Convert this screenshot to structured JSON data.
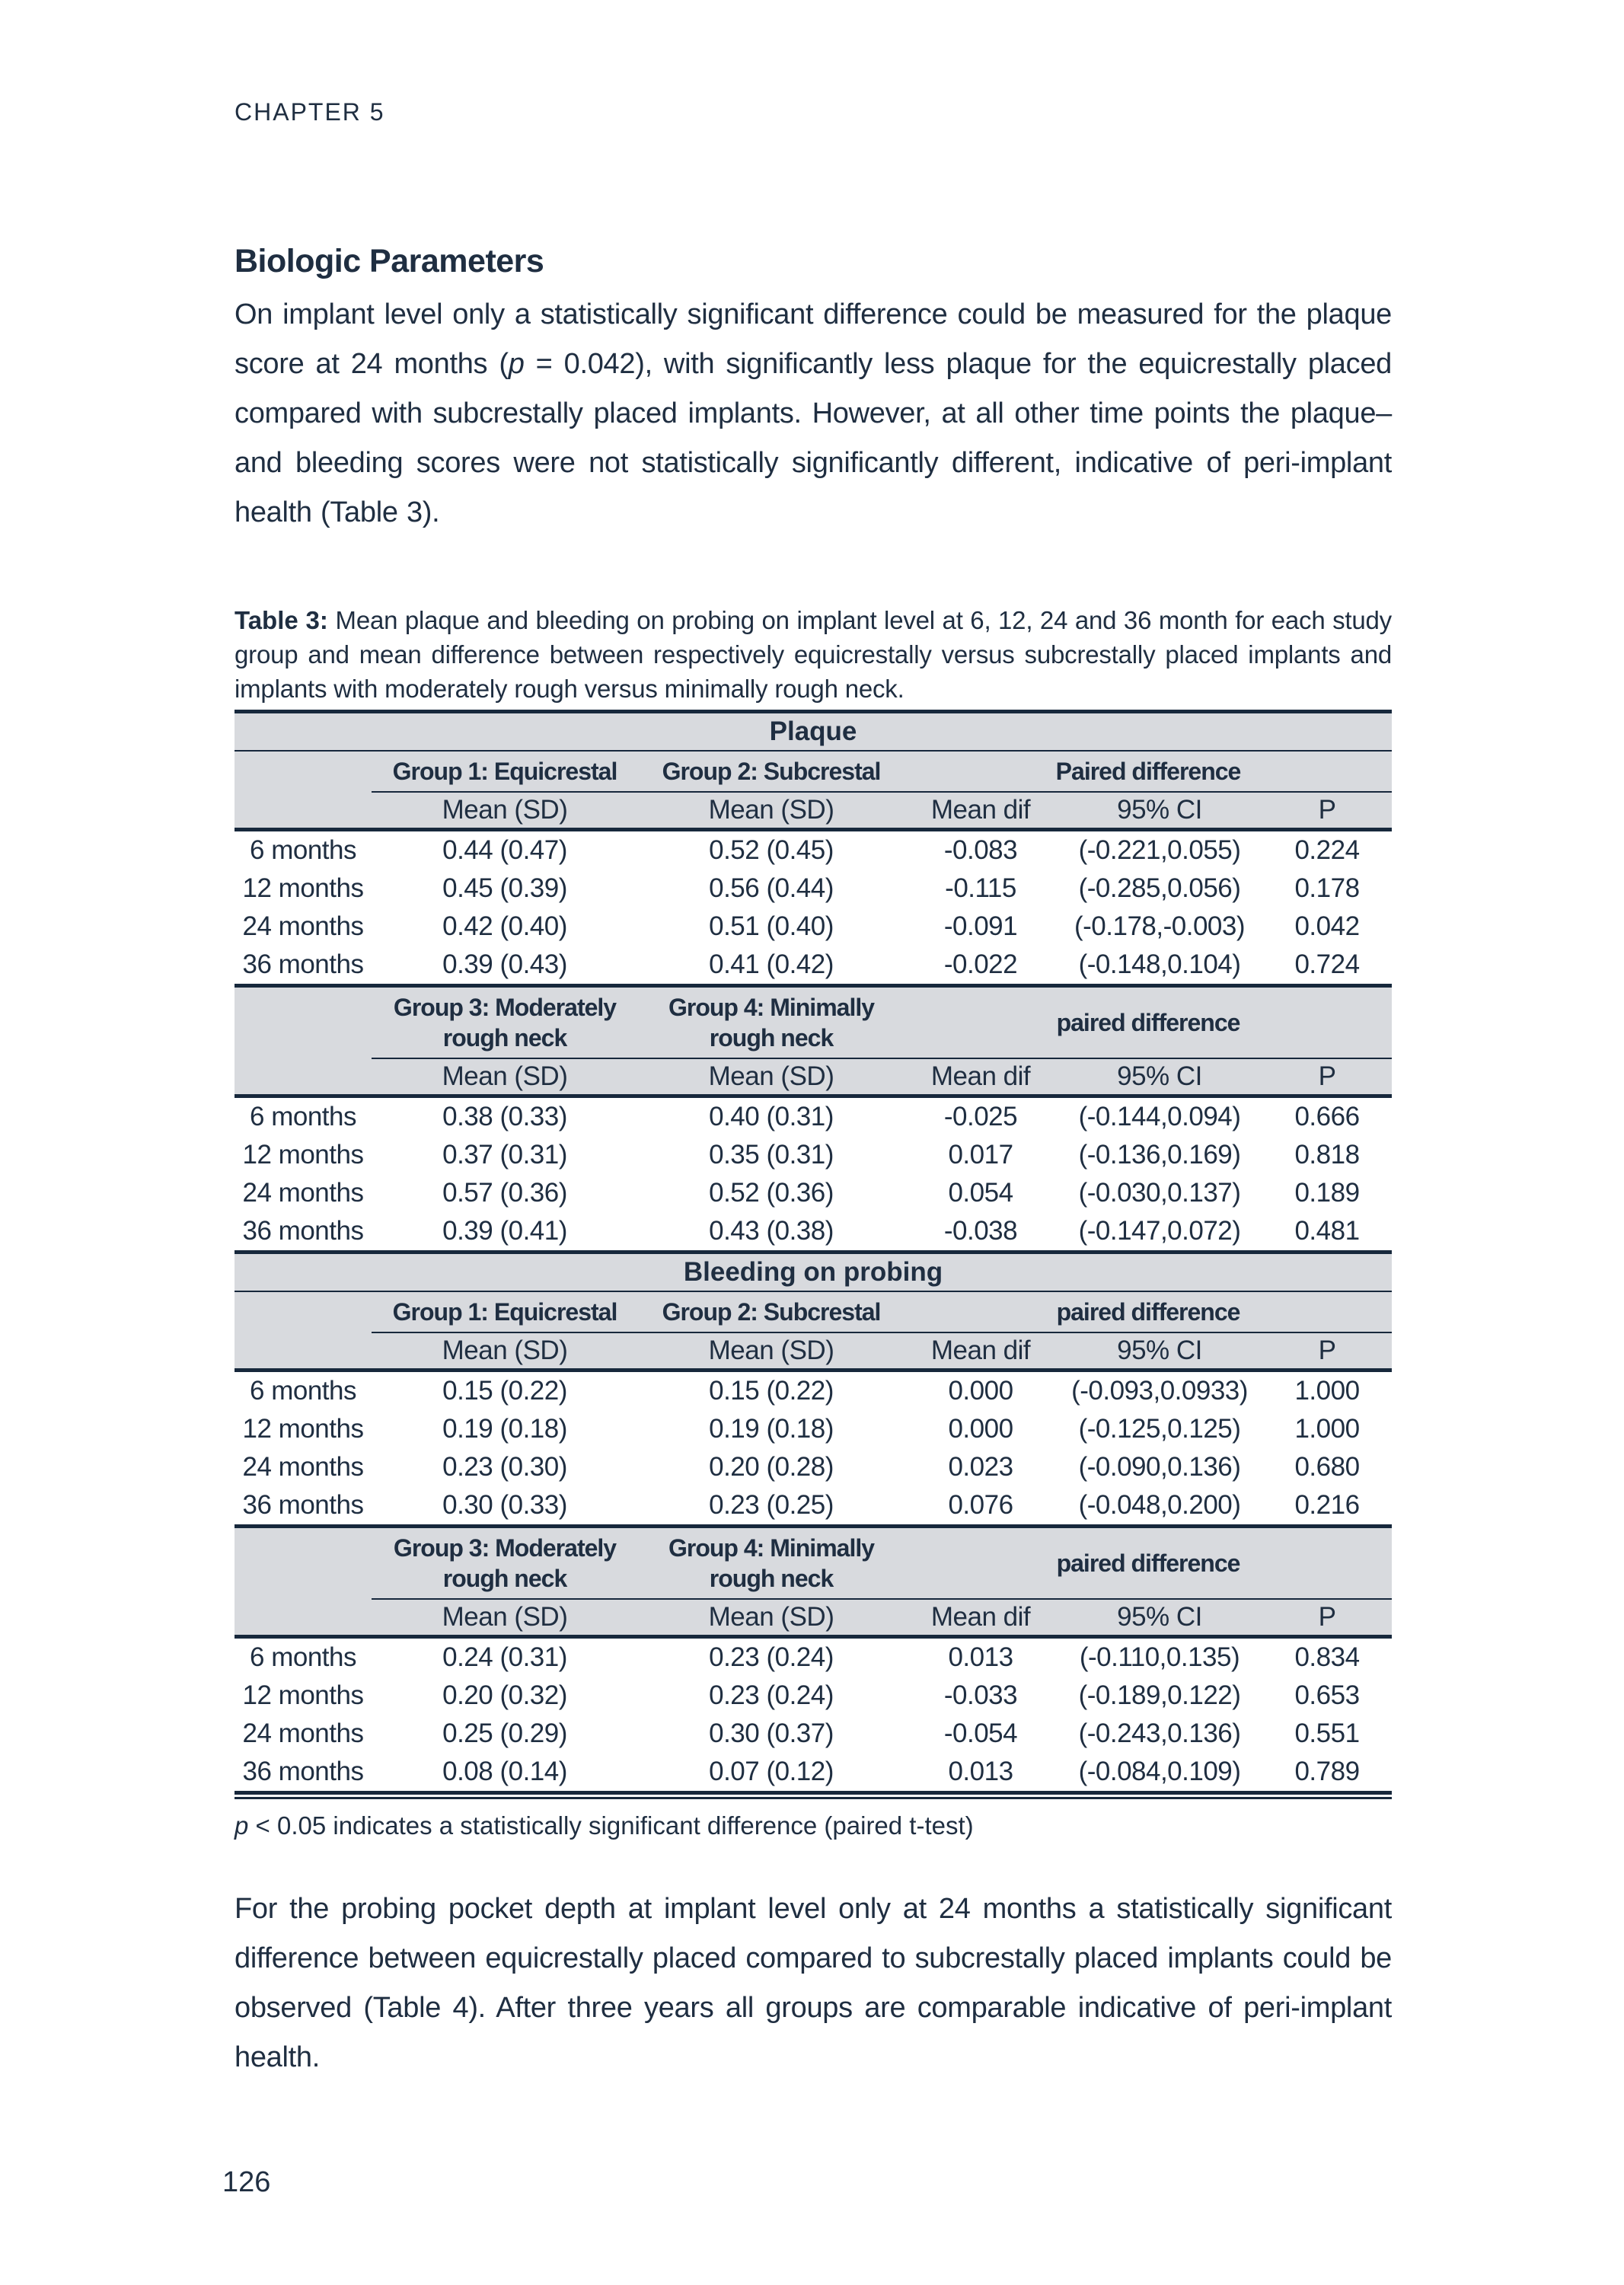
{
  "colors": {
    "text_navy": "#1f2e41",
    "rule_navy": "#17283c",
    "band_gray": "#d8dade",
    "page_bg": "#ffffff"
  },
  "page": {
    "running_header": "CHAPTER 5",
    "section_title": "Biologic Parameters",
    "p1_before": "On implant level only a statistically significant difference could be measured for the plaque score at 24 months (",
    "p1_italic": "p",
    "p1_after": " = 0.042), with significantly less plaque for the equicrestally placed compared with subcrestally placed implants. However, at all other time points the plaque–and bleeding scores were not statistically significantly different, indicative of peri-implant health (Table 3).",
    "p2": "For the probing pocket depth at implant level only at 24 months a statistically significant difference between equicrestally placed compared to subcrestally placed implants could be observed (Table 4). After three years all groups are comparable indicative of peri-implant health.",
    "page_number": "126"
  },
  "table3": {
    "caption_label": "Table 3:",
    "caption_rest": " Mean plaque and bleeding on probing on implant level at 6, 12, 24 and 36 month for each study group and mean difference between respectively equicrestally versus subcrestally placed implants and implants with moderately rough versus minimally rough neck.",
    "col_subheaders": [
      "Mean (SD)",
      "Mean (SD)",
      "Mean dif",
      "95% CI",
      "P"
    ],
    "footnote_italic": "p",
    "footnote_rest": " < 0.05 indicates a statistically significant difference (paired t-test)",
    "sections": [
      {
        "title": "Plaque",
        "blocks": [
          {
            "groups": [
              "Group 1: Equicrestal",
              "Group 2: Subcrestal",
              "Paired difference"
            ],
            "rows": [
              {
                "label": "6 months",
                "cells": [
                  "0.44 (0.47)",
                  "0.52 (0.45)",
                  "-0.083",
                  "(-0.221,0.055)",
                  "0.224"
                ]
              },
              {
                "label": "12 months",
                "cells": [
                  "0.45 (0.39)",
                  "0.56 (0.44)",
                  "-0.115",
                  "(-0.285,0.056)",
                  "0.178"
                ]
              },
              {
                "label": "24 months",
                "cells": [
                  "0.42 (0.40)",
                  "0.51 (0.40)",
                  "-0.091",
                  "(-0.178,-0.003)",
                  "0.042"
                ]
              },
              {
                "label": "36 months",
                "cells": [
                  "0.39 (0.43)",
                  "0.41 (0.42)",
                  "-0.022",
                  "(-0.148,0.104)",
                  "0.724"
                ]
              }
            ]
          },
          {
            "groups": [
              "Group 3: Moderately\nrough neck",
              "Group 4: Minimally\nrough neck",
              "paired difference"
            ],
            "rows": [
              {
                "label": "6 months",
                "cells": [
                  "0.38 (0.33)",
                  "0.40 (0.31)",
                  "-0.025",
                  "(-0.144,0.094)",
                  "0.666"
                ]
              },
              {
                "label": "12 months",
                "cells": [
                  "0.37 (0.31)",
                  "0.35 (0.31)",
                  "0.017",
                  "(-0.136,0.169)",
                  "0.818"
                ]
              },
              {
                "label": "24 months",
                "cells": [
                  "0.57 (0.36)",
                  "0.52 (0.36)",
                  "0.054",
                  "(-0.030,0.137)",
                  "0.189"
                ]
              },
              {
                "label": "36 months",
                "cells": [
                  "0.39 (0.41)",
                  "0.43 (0.38)",
                  "-0.038",
                  "(-0.147,0.072)",
                  "0.481"
                ]
              }
            ]
          }
        ]
      },
      {
        "title": "Bleeding on probing",
        "blocks": [
          {
            "groups": [
              "Group 1: Equicrestal",
              "Group 2: Subcrestal",
              "paired difference"
            ],
            "rows": [
              {
                "label": "6 months",
                "cells": [
                  "0.15 (0.22)",
                  "0.15 (0.22)",
                  "0.000",
                  "(-0.093,0.0933)",
                  "1.000"
                ]
              },
              {
                "label": "12 months",
                "cells": [
                  "0.19 (0.18)",
                  "0.19 (0.18)",
                  "0.000",
                  "(-0.125,0.125)",
                  "1.000"
                ]
              },
              {
                "label": "24 months",
                "cells": [
                  "0.23 (0.30)",
                  "0.20 (0.28)",
                  "0.023",
                  "(-0.090,0.136)",
                  "0.680"
                ]
              },
              {
                "label": "36 months",
                "cells": [
                  "0.30 (0.33)",
                  "0.23 (0.25)",
                  "0.076",
                  "(-0.048,0.200)",
                  "0.216"
                ]
              }
            ]
          },
          {
            "groups": [
              "Group 3: Moderately\nrough neck",
              "Group 4: Minimally\nrough neck",
              "paired difference"
            ],
            "rows": [
              {
                "label": "6 months",
                "cells": [
                  "0.24 (0.31)",
                  "0.23 (0.24)",
                  "0.013",
                  "(-0.110,0.135)",
                  "0.834"
                ]
              },
              {
                "label": "12 months",
                "cells": [
                  "0.20 (0.32)",
                  "0.23 (0.24)",
                  "-0.033",
                  "(-0.189,0.122)",
                  "0.653"
                ]
              },
              {
                "label": "24 months",
                "cells": [
                  "0.25 (0.29)",
                  "0.30 (0.37)",
                  "-0.054",
                  "(-0.243,0.136)",
                  "0.551"
                ]
              },
              {
                "label": "36 months",
                "cells": [
                  "0.08 (0.14)",
                  "0.07 (0.12)",
                  "0.013",
                  "(-0.084,0.109)",
                  "0.789"
                ]
              }
            ]
          }
        ]
      }
    ]
  }
}
